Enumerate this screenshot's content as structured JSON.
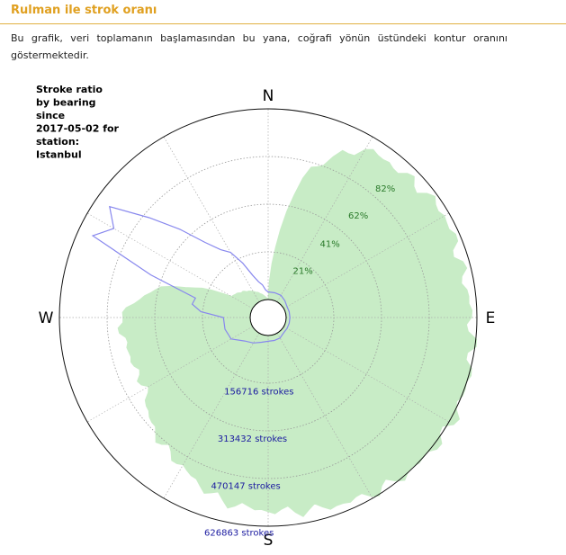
{
  "section": {
    "title": "Rulman ile strok oranı",
    "description": "Bu grafik, veri toplamanın başlamasından bu yana, coğrafi yönün üstündeki kontur oranını göstermektedir."
  },
  "chart_data": {
    "type": "polar-area",
    "title_lines": [
      "Stroke ratio",
      "by bearing",
      "since",
      "2017-05-02 for",
      "station:",
      "Istanbul"
    ],
    "compass": {
      "north": "N",
      "east": "E",
      "south": "S",
      "west": "W"
    },
    "count_rings": [
      {
        "value": 156716,
        "label": "156716 strokes"
      },
      {
        "value": 313432,
        "label": "313432 strokes"
      },
      {
        "value": 470147,
        "label": "470147 strokes"
      },
      {
        "value": 626863,
        "label": "626863 strokes"
      }
    ],
    "ratio_rings": [
      {
        "value": 21,
        "label": "21%"
      },
      {
        "value": 41,
        "label": "41%"
      },
      {
        "value": 62,
        "label": "62%"
      },
      {
        "value": 82,
        "label": "82%"
      }
    ],
    "series": [
      {
        "kind": "stroke-count",
        "color": "#c8ecc6",
        "bearing_deg": [
          0,
          15,
          30,
          45,
          60,
          75,
          90,
          105,
          120,
          135,
          150,
          165,
          180,
          195,
          210,
          225,
          240,
          255,
          270,
          285,
          300,
          315,
          330,
          345
        ],
        "strokes": [
          0,
          440000,
          580000,
          590000,
          610000,
          595000,
          605000,
          625000,
          635000,
          630000,
          610000,
          590000,
          575000,
          560000,
          505000,
          470000,
          405000,
          410000,
          430000,
          315000,
          80000,
          60000,
          40000,
          20000
        ]
      },
      {
        "kind": "stroke-ratio",
        "color": "#8888ee",
        "bearing_deg": [
          0,
          15,
          30,
          45,
          60,
          75,
          90,
          105,
          120,
          135,
          150,
          165,
          180,
          195,
          210,
          225,
          240,
          255,
          270,
          275,
          280,
          285,
          290,
          295,
          300,
          305,
          310,
          315,
          320,
          325,
          330,
          335,
          340,
          345,
          350,
          355
        ],
        "ratio_pct": [
          4,
          4,
          4,
          3,
          2,
          2,
          2,
          2,
          2,
          2,
          3,
          3,
          3,
          4,
          6,
          8,
          13,
          14,
          14,
          26,
          31,
          30,
          56,
          92,
          84,
          92,
          72,
          56,
          42,
          34,
          30,
          22,
          14,
          10,
          8,
          5
        ]
      }
    ]
  }
}
